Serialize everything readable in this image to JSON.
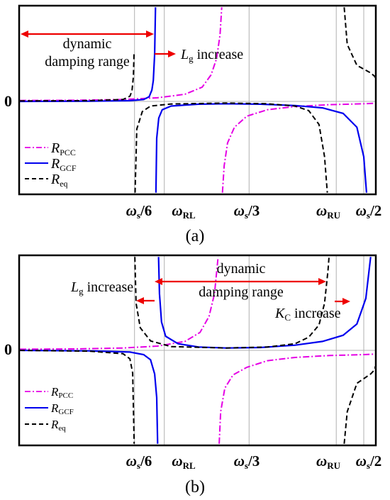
{
  "colors": {
    "r_pcc": "#e500e5",
    "r_gcf": "#0000ee",
    "r_eq": "#000000",
    "arrow": "#ee0000",
    "grid": "#b0b0b0"
  },
  "chart_data": [
    {
      "panel": "(a)",
      "type": "line",
      "caption": "(a)",
      "ylabel_zero": "0",
      "xlim": [
        0,
        0.55
      ],
      "ylim": [
        -10,
        10
      ],
      "xticks": [
        {
          "x": 0.1667,
          "base": "ω",
          "sub": "s",
          "tail": "/6"
        },
        {
          "x": 0.21,
          "base": "ω",
          "sub": "RL",
          "tail": ""
        },
        {
          "x": 0.3333,
          "base": "ω",
          "sub": "s",
          "tail": "/3"
        },
        {
          "x": 0.46,
          "base": "ω",
          "sub": "RU",
          "tail": ""
        },
        {
          "x": 0.5,
          "base": "ω",
          "sub": "s",
          "tail": "/2"
        }
      ],
      "legend": [
        {
          "key": "r_pcc",
          "base": "R",
          "sub": "PCC",
          "style": "dashdot"
        },
        {
          "key": "r_gcf",
          "base": "R",
          "sub": "GCF",
          "style": "solid"
        },
        {
          "key": "r_eq",
          "base": "R",
          "sub": "eq",
          "style": "dashed"
        }
      ],
      "annotations": [
        {
          "id": "dyn1",
          "text": "dynamic"
        },
        {
          "id": "dyn2",
          "text": "damping range"
        },
        {
          "id": "lg",
          "base": "L",
          "sub": "g",
          "tail": " increase"
        }
      ],
      "series": [
        {
          "name": "RPCC",
          "color_key": "r_pcc",
          "style": "dashdot",
          "pole": 0.2941,
          "segments": [
            [
              [
                0.0,
                0.1
              ],
              [
                0.08,
                0.12
              ],
              [
                0.15,
                0.2
              ],
              [
                0.2,
                0.38
              ],
              [
                0.24,
                0.75
              ],
              [
                0.265,
                1.5
              ],
              [
                0.278,
                2.8
              ],
              [
                0.286,
                4.5
              ],
              [
                0.291,
                7.0
              ],
              [
                0.2935,
                9.9
              ]
            ],
            [
              [
                0.2945,
                -9.9
              ],
              [
                0.297,
                -7.0
              ],
              [
                0.302,
                -4.5
              ],
              [
                0.312,
                -2.8
              ],
              [
                0.33,
                -1.6
              ],
              [
                0.36,
                -0.9
              ],
              [
                0.4,
                -0.55
              ],
              [
                0.45,
                -0.35
              ],
              [
                0.5,
                -0.25
              ],
              [
                0.55,
                -0.2
              ]
            ]
          ]
        },
        {
          "name": "RGCF",
          "color_key": "r_gcf",
          "style": "solid",
          "pole": 0.1975,
          "segments": [
            [
              [
                0.0,
                0.0
              ],
              [
                0.1,
                0.02
              ],
              [
                0.16,
                0.08
              ],
              [
                0.18,
                0.2
              ],
              [
                0.188,
                0.5
              ],
              [
                0.192,
                1.2
              ],
              [
                0.194,
                2.2
              ],
              [
                0.196,
                5.0
              ],
              [
                0.1972,
                9.9
              ]
            ],
            [
              [
                0.1978,
                -9.9
              ],
              [
                0.199,
                -4.0
              ],
              [
                0.202,
                -1.8
              ],
              [
                0.207,
                -0.9
              ],
              [
                0.22,
                -0.5
              ],
              [
                0.26,
                -0.3
              ],
              [
                0.3,
                -0.25
              ],
              [
                0.35,
                -0.3
              ],
              [
                0.4,
                -0.45
              ],
              [
                0.44,
                -0.7
              ],
              [
                0.47,
                -1.3
              ],
              [
                0.49,
                -2.8
              ],
              [
                0.5,
                -6.0
              ],
              [
                0.504,
                -9.9
              ]
            ]
          ]
        },
        {
          "name": "Req",
          "color_key": "r_eq",
          "style": "dashed",
          "pole": 0.1667,
          "segments": [
            [
              [
                0.0,
                0.05
              ],
              [
                0.1,
                0.08
              ],
              [
                0.15,
                0.2
              ],
              [
                0.16,
                0.55
              ],
              [
                0.163,
                1.1
              ],
              [
                0.165,
                2.6
              ],
              [
                0.166,
                5.0
              ]
            ],
            [
              [
                0.1675,
                -9.9
              ],
              [
                0.17,
                -3.0
              ],
              [
                0.178,
                -1.1
              ],
              [
                0.19,
                -0.5
              ],
              [
                0.22,
                -0.28
              ],
              [
                0.3,
                -0.18
              ],
              [
                0.36,
                -0.25
              ],
              [
                0.4,
                -0.5
              ],
              [
                0.42,
                -1.0
              ],
              [
                0.435,
                -2.5
              ],
              [
                0.443,
                -6.0
              ],
              [
                0.447,
                -9.9
              ]
            ],
            [
              [
                0.4715,
                9.9
              ],
              [
                0.476,
                6.0
              ],
              [
                0.49,
                3.8
              ],
              [
                0.51,
                3.0
              ],
              [
                0.53,
                2.6
              ],
              [
                0.55,
                2.4
              ]
            ]
          ]
        }
      ]
    },
    {
      "panel": "(b)",
      "type": "line",
      "caption": "(b)",
      "ylabel_zero": "0",
      "xlim": [
        0,
        0.55
      ],
      "ylim": [
        -10,
        10
      ],
      "xticks": [
        {
          "x": 0.1667,
          "base": "ω",
          "sub": "s",
          "tail": "/6"
        },
        {
          "x": 0.21,
          "base": "ω",
          "sub": "RL",
          "tail": ""
        },
        {
          "x": 0.3333,
          "base": "ω",
          "sub": "s",
          "tail": "/3"
        },
        {
          "x": 0.46,
          "base": "ω",
          "sub": "RU",
          "tail": ""
        },
        {
          "x": 0.5,
          "base": "ω",
          "sub": "s",
          "tail": "/2"
        }
      ],
      "legend": [
        {
          "key": "r_pcc",
          "base": "R",
          "sub": "PCC",
          "style": "dashdot"
        },
        {
          "key": "r_gcf",
          "base": "R",
          "sub": "GCF",
          "style": "solid"
        },
        {
          "key": "r_eq",
          "base": "R",
          "sub": "eq",
          "style": "dashed"
        }
      ],
      "annotations": [
        {
          "id": "dyn1",
          "text": "dynamic"
        },
        {
          "id": "dyn2",
          "text": "damping range"
        },
        {
          "id": "lg",
          "base": "L",
          "sub": "g",
          "tail": " increase"
        },
        {
          "id": "kc",
          "base": "K",
          "sub": "C",
          "tail": " increase"
        }
      ],
      "series": [
        {
          "name": "RPCC",
          "color_key": "r_pcc",
          "style": "dashdot",
          "pole": 0.289,
          "segments": [
            [
              [
                0.0,
                0.12
              ],
              [
                0.08,
                0.15
              ],
              [
                0.15,
                0.25
              ],
              [
                0.2,
                0.45
              ],
              [
                0.24,
                0.95
              ],
              [
                0.262,
                1.9
              ],
              [
                0.275,
                3.6
              ],
              [
                0.283,
                6.0
              ],
              [
                0.2882,
                9.9
              ]
            ],
            [
              [
                0.2898,
                -9.9
              ],
              [
                0.292,
                -6.5
              ],
              [
                0.298,
                -4.0
              ],
              [
                0.31,
                -2.6
              ],
              [
                0.33,
                -1.8
              ],
              [
                0.36,
                -1.1
              ],
              [
                0.4,
                -0.75
              ],
              [
                0.45,
                -0.55
              ],
              [
                0.5,
                -0.45
              ],
              [
                0.55,
                -0.4
              ]
            ]
          ]
        },
        {
          "name": "RGCF",
          "color_key": "r_gcf",
          "style": "solid",
          "pole": 0.201,
          "segments": [
            [
              [
                0.0,
                0.0
              ],
              [
                0.1,
                -0.05
              ],
              [
                0.16,
                -0.18
              ],
              [
                0.18,
                -0.45
              ],
              [
                0.19,
                -1.0
              ],
              [
                0.196,
                -2.5
              ],
              [
                0.199,
                -5.0
              ],
              [
                0.2003,
                -9.9
              ]
            ],
            [
              [
                0.2017,
                9.9
              ],
              [
                0.203,
                6.0
              ],
              [
                0.206,
                3.0
              ],
              [
                0.212,
                1.5
              ],
              [
                0.23,
                0.7
              ],
              [
                0.26,
                0.35
              ],
              [
                0.3,
                0.25
              ],
              [
                0.35,
                0.3
              ],
              [
                0.4,
                0.55
              ],
              [
                0.44,
                0.95
              ],
              [
                0.47,
                1.6
              ],
              [
                0.49,
                2.8
              ],
              [
                0.503,
                5.5
              ],
              [
                0.51,
                9.9
              ]
            ]
          ]
        },
        {
          "name": "Req",
          "color_key": "r_eq",
          "style": "dashed",
          "pole": 0.1667,
          "segments": [
            [
              [
                0.0,
                0.0
              ],
              [
                0.1,
                -0.08
              ],
              [
                0.15,
                -0.35
              ],
              [
                0.16,
                -0.9
              ],
              [
                0.164,
                -2.4
              ],
              [
                0.1662,
                -9.9
              ]
            ],
            [
              [
                0.1672,
                9.9
              ],
              [
                0.169,
                5.0
              ],
              [
                0.175,
                2.4
              ],
              [
                0.19,
                1.0
              ],
              [
                0.22,
                0.4
              ],
              [
                0.3,
                0.25
              ],
              [
                0.36,
                0.35
              ],
              [
                0.4,
                0.7
              ],
              [
                0.42,
                1.4
              ],
              [
                0.435,
                2.7
              ],
              [
                0.443,
                5.0
              ],
              [
                0.448,
                8.5
              ],
              [
                0.4495,
                9.9
              ]
            ],
            [
              [
                0.4715,
                -9.9
              ],
              [
                0.476,
                -6.5
              ],
              [
                0.49,
                -3.5
              ],
              [
                0.51,
                -2.5
              ],
              [
                0.53,
                -2.0
              ],
              [
                0.55,
                -1.7
              ]
            ]
          ]
        }
      ]
    }
  ]
}
